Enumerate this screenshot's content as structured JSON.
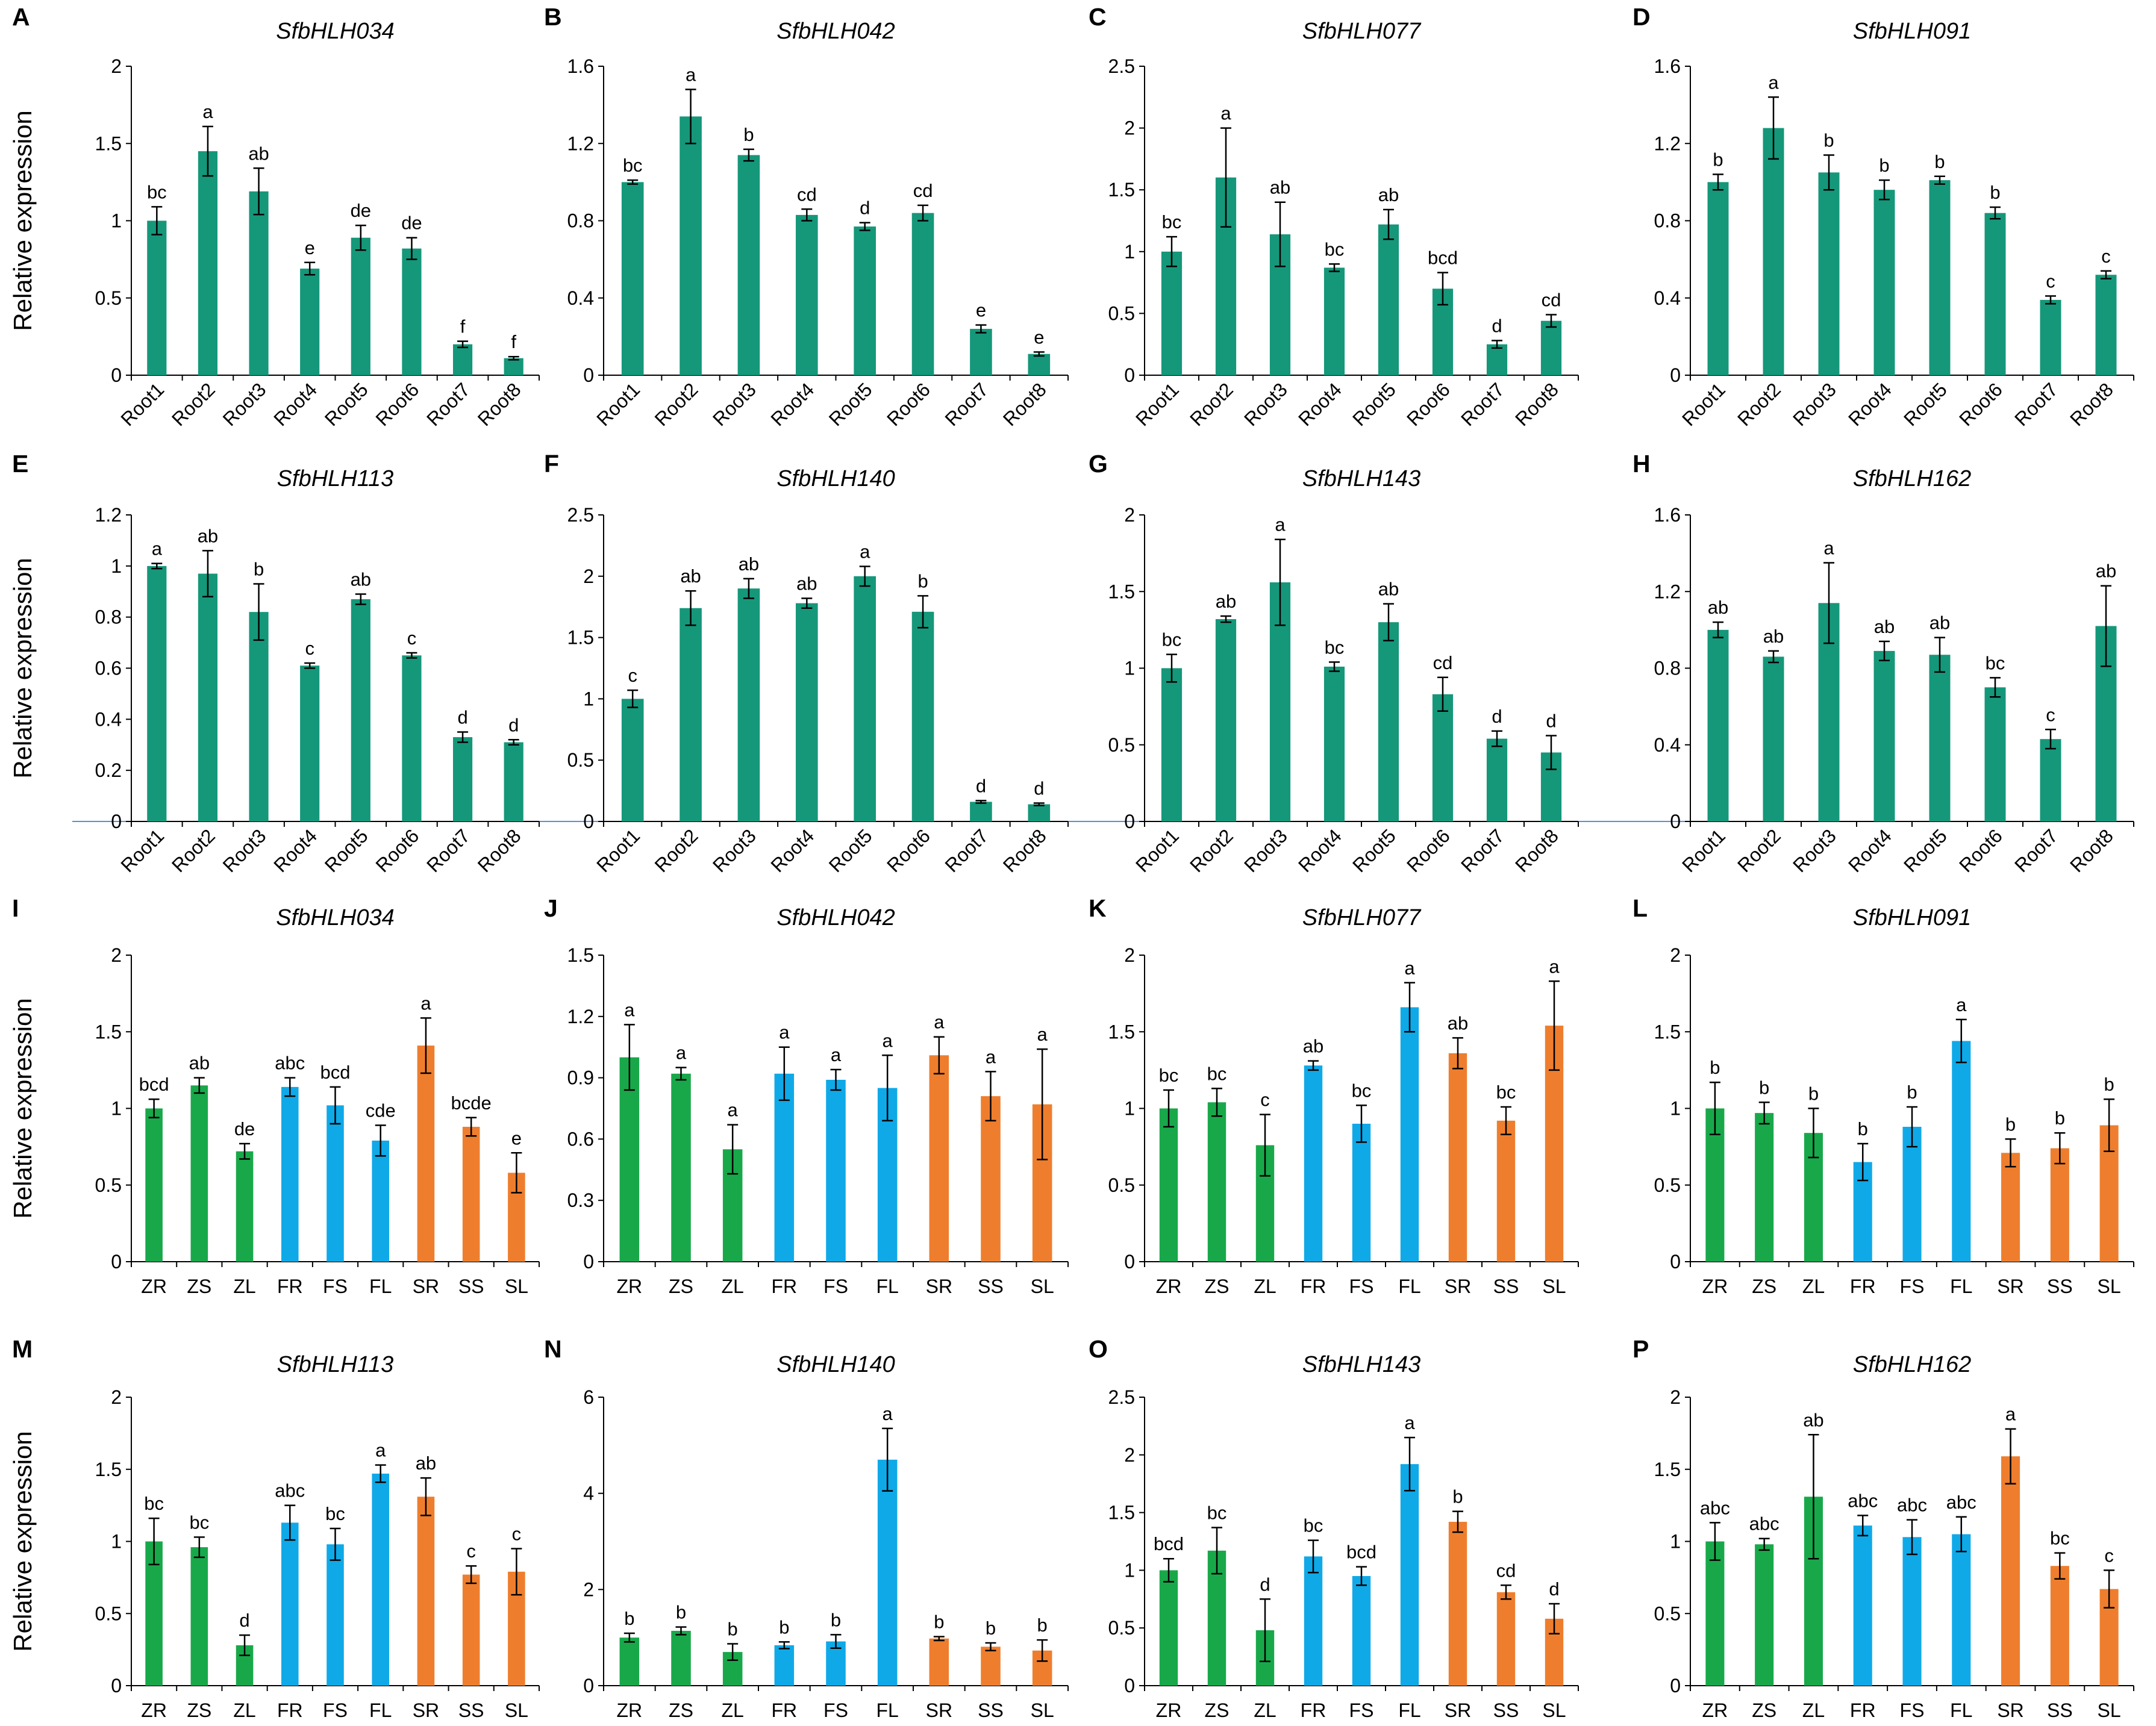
{
  "y_axis_label": "Relative expression",
  "colors": {
    "root": "#15977A",
    "z": "#18A84A",
    "f": "#0FA9E8",
    "s": "#EE7E2E",
    "divider": "#5B8FD6"
  },
  "chart_data": [
    {
      "panel": "A",
      "type": "bar",
      "title": "SfbHLH034",
      "categories": [
        "Root1",
        "Root2",
        "Root3",
        "Root4",
        "Root5",
        "Root6",
        "Root7",
        "Root8"
      ],
      "values": [
        1.0,
        1.45,
        1.19,
        0.69,
        0.89,
        0.82,
        0.2,
        0.11
      ],
      "errors": [
        0.09,
        0.16,
        0.15,
        0.04,
        0.08,
        0.07,
        0.02,
        0.01
      ],
      "letters": [
        "bc",
        "a",
        "ab",
        "e",
        "de",
        "de",
        "f",
        "f"
      ],
      "ylim": [
        0,
        2
      ],
      "ticks": [
        "0",
        "0.5",
        "1",
        "1.5",
        "2"
      ],
      "colors": [
        "root",
        "root",
        "root",
        "root",
        "root",
        "root",
        "root",
        "root"
      ]
    },
    {
      "panel": "B",
      "type": "bar",
      "title": "SfbHLH042",
      "categories": [
        "Root1",
        "Root2",
        "Root3",
        "Root4",
        "Root5",
        "Root6",
        "Root7",
        "Root8"
      ],
      "values": [
        1.0,
        1.34,
        1.14,
        0.83,
        0.77,
        0.84,
        0.24,
        0.11
      ],
      "errors": [
        0.01,
        0.14,
        0.03,
        0.03,
        0.02,
        0.04,
        0.02,
        0.01
      ],
      "letters": [
        "bc",
        "a",
        "b",
        "cd",
        "d",
        "cd",
        "e",
        "e"
      ],
      "ylim": [
        0,
        1.6
      ],
      "ticks": [
        "0",
        "0.4",
        "0.8",
        "1.2",
        "1.6"
      ],
      "colors": [
        "root",
        "root",
        "root",
        "root",
        "root",
        "root",
        "root",
        "root"
      ]
    },
    {
      "panel": "C",
      "type": "bar",
      "title": "SfbHLH077",
      "categories": [
        "Root1",
        "Root2",
        "Root3",
        "Root4",
        "Root5",
        "Root6",
        "Root7",
        "Root8"
      ],
      "values": [
        1.0,
        1.6,
        1.14,
        0.87,
        1.22,
        0.7,
        0.25,
        0.44
      ],
      "errors": [
        0.12,
        0.4,
        0.26,
        0.03,
        0.12,
        0.13,
        0.03,
        0.05
      ],
      "letters": [
        "bc",
        "a",
        "ab",
        "bc",
        "ab",
        "bcd",
        "d",
        "cd"
      ],
      "ylim": [
        0,
        2.5
      ],
      "ticks": [
        "0",
        "0.5",
        "1",
        "1.5",
        "2",
        "2.5"
      ],
      "colors": [
        "root",
        "root",
        "root",
        "root",
        "root",
        "root",
        "root",
        "root"
      ]
    },
    {
      "panel": "D",
      "type": "bar",
      "title": "SfbHLH091",
      "categories": [
        "Root1",
        "Root2",
        "Root3",
        "Root4",
        "Root5",
        "Root6",
        "Root7",
        "Root8"
      ],
      "values": [
        1.0,
        1.28,
        1.05,
        0.96,
        1.01,
        0.84,
        0.39,
        0.52
      ],
      "errors": [
        0.04,
        0.16,
        0.09,
        0.05,
        0.02,
        0.03,
        0.02,
        0.02
      ],
      "letters": [
        "b",
        "a",
        "b",
        "b",
        "b",
        "b",
        "c",
        "c"
      ],
      "ylim": [
        0,
        1.6
      ],
      "ticks": [
        "0",
        "0.4",
        "0.8",
        "1.2",
        "1.6"
      ],
      "colors": [
        "root",
        "root",
        "root",
        "root",
        "root",
        "root",
        "root",
        "root"
      ]
    },
    {
      "panel": "E",
      "type": "bar",
      "title": "SfbHLH113",
      "categories": [
        "Root1",
        "Root2",
        "Root3",
        "Root4",
        "Root5",
        "Root6",
        "Root7",
        "Root8"
      ],
      "values": [
        1.0,
        0.97,
        0.82,
        0.61,
        0.87,
        0.65,
        0.33,
        0.31
      ],
      "errors": [
        0.01,
        0.09,
        0.11,
        0.01,
        0.02,
        0.01,
        0.02,
        0.01
      ],
      "letters": [
        "a",
        "ab",
        "b",
        "c",
        "ab",
        "c",
        "d",
        "d"
      ],
      "ylim": [
        0,
        1.2
      ],
      "ticks": [
        "0",
        "0.2",
        "0.4",
        "0.6",
        "0.8",
        "1",
        "1.2"
      ],
      "colors": [
        "root",
        "root",
        "root",
        "root",
        "root",
        "root",
        "root",
        "root"
      ]
    },
    {
      "panel": "F",
      "type": "bar",
      "title": "SfbHLH140",
      "categories": [
        "Root1",
        "Root2",
        "Root3",
        "Root4",
        "Root5",
        "Root6",
        "Root7",
        "Root8"
      ],
      "values": [
        1.0,
        1.74,
        1.9,
        1.78,
        2.0,
        1.71,
        0.16,
        0.14
      ],
      "errors": [
        0.07,
        0.14,
        0.08,
        0.04,
        0.08,
        0.13,
        0.01,
        0.01
      ],
      "letters": [
        "c",
        "ab",
        "ab",
        "ab",
        "a",
        "b",
        "d",
        "d"
      ],
      "ylim": [
        0,
        2.5
      ],
      "ticks": [
        "0",
        "0.5",
        "1",
        "1.5",
        "2",
        "2.5"
      ],
      "colors": [
        "root",
        "root",
        "root",
        "root",
        "root",
        "root",
        "root",
        "root"
      ]
    },
    {
      "panel": "G",
      "type": "bar",
      "title": "SfbHLH143",
      "categories": [
        "Root1",
        "Root2",
        "Root3",
        "Root4",
        "Root5",
        "Root6",
        "Root7",
        "Root8"
      ],
      "values": [
        1.0,
        1.32,
        1.56,
        1.01,
        1.3,
        0.83,
        0.54,
        0.45
      ],
      "errors": [
        0.09,
        0.02,
        0.28,
        0.03,
        0.12,
        0.11,
        0.05,
        0.11
      ],
      "letters": [
        "bc",
        "ab",
        "a",
        "bc",
        "ab",
        "cd",
        "d",
        "d"
      ],
      "ylim": [
        0,
        2
      ],
      "ticks": [
        "0",
        "0.5",
        "1",
        "1.5",
        "2"
      ],
      "colors": [
        "root",
        "root",
        "root",
        "root",
        "root",
        "root",
        "root",
        "root"
      ]
    },
    {
      "panel": "H",
      "type": "bar",
      "title": "SfbHLH162",
      "categories": [
        "Root1",
        "Root2",
        "Root3",
        "Root4",
        "Root5",
        "Root6",
        "Root7",
        "Root8"
      ],
      "values": [
        1.0,
        0.86,
        1.14,
        0.89,
        0.87,
        0.7,
        0.43,
        1.02
      ],
      "errors": [
        0.04,
        0.03,
        0.21,
        0.05,
        0.09,
        0.05,
        0.05,
        0.21
      ],
      "letters": [
        "ab",
        "ab",
        "a",
        "ab",
        "ab",
        "bc",
        "c",
        "ab"
      ],
      "ylim": [
        0,
        1.6
      ],
      "ticks": [
        "0",
        "0.4",
        "0.8",
        "1.2",
        "1.6"
      ],
      "colors": [
        "root",
        "root",
        "root",
        "root",
        "root",
        "root",
        "root",
        "root"
      ]
    },
    {
      "panel": "I",
      "type": "bar",
      "title": "SfbHLH034",
      "categories": [
        "ZR",
        "ZS",
        "ZL",
        "FR",
        "FS",
        "FL",
        "SR",
        "SS",
        "SL"
      ],
      "values": [
        1.0,
        1.15,
        0.72,
        1.14,
        1.02,
        0.79,
        1.41,
        0.88,
        0.58
      ],
      "errors": [
        0.06,
        0.05,
        0.05,
        0.06,
        0.12,
        0.1,
        0.18,
        0.06,
        0.13
      ],
      "letters": [
        "bcd",
        "ab",
        "de",
        "abc",
        "bcd",
        "cde",
        "a",
        "bcde",
        "e"
      ],
      "ylim": [
        0,
        2
      ],
      "ticks": [
        "0",
        "0.5",
        "1",
        "1.5",
        "2"
      ],
      "colors": [
        "z",
        "z",
        "z",
        "f",
        "f",
        "f",
        "s",
        "s",
        "s"
      ]
    },
    {
      "panel": "J",
      "type": "bar",
      "title": "SfbHLH042",
      "categories": [
        "ZR",
        "ZS",
        "ZL",
        "FR",
        "FS",
        "FL",
        "SR",
        "SS",
        "SL"
      ],
      "values": [
        1.0,
        0.92,
        0.55,
        0.92,
        0.89,
        0.85,
        1.01,
        0.81,
        0.77
      ],
      "errors": [
        0.16,
        0.03,
        0.12,
        0.13,
        0.05,
        0.16,
        0.09,
        0.12,
        0.27
      ],
      "letters": [
        "a",
        "a",
        "a",
        "a",
        "a",
        "a",
        "a",
        "a",
        "a"
      ],
      "ylim": [
        0,
        1.5
      ],
      "ticks": [
        "0",
        "0.3",
        "0.6",
        "0.9",
        "1.2",
        "1.5"
      ],
      "colors": [
        "z",
        "z",
        "z",
        "f",
        "f",
        "f",
        "s",
        "s",
        "s"
      ]
    },
    {
      "panel": "K",
      "type": "bar",
      "title": "SfbHLH077",
      "categories": [
        "ZR",
        "ZS",
        "ZL",
        "FR",
        "FS",
        "FL",
        "SR",
        "SS",
        "SL"
      ],
      "values": [
        1.0,
        1.04,
        0.76,
        1.28,
        0.9,
        1.66,
        1.36,
        0.92,
        1.54
      ],
      "errors": [
        0.12,
        0.09,
        0.2,
        0.03,
        0.12,
        0.16,
        0.1,
        0.09,
        0.29
      ],
      "letters": [
        "bc",
        "bc",
        "c",
        "ab",
        "bc",
        "a",
        "ab",
        "bc",
        "a"
      ],
      "ylim": [
        0,
        2
      ],
      "ticks": [
        "0",
        "0.5",
        "1",
        "1.5",
        "2"
      ],
      "colors": [
        "z",
        "z",
        "z",
        "f",
        "f",
        "f",
        "s",
        "s",
        "s"
      ]
    },
    {
      "panel": "L",
      "type": "bar",
      "title": "SfbHLH091",
      "categories": [
        "ZR",
        "ZS",
        "ZL",
        "FR",
        "FS",
        "FL",
        "SR",
        "SS",
        "SL"
      ],
      "values": [
        1.0,
        0.97,
        0.84,
        0.65,
        0.88,
        1.44,
        0.71,
        0.74,
        0.89
      ],
      "errors": [
        0.17,
        0.07,
        0.16,
        0.12,
        0.13,
        0.14,
        0.09,
        0.1,
        0.17
      ],
      "letters": [
        "b",
        "b",
        "b",
        "b",
        "b",
        "a",
        "b",
        "b",
        "b"
      ],
      "ylim": [
        0,
        2
      ],
      "ticks": [
        "0",
        "0.5",
        "1",
        "1.5",
        "2"
      ],
      "colors": [
        "z",
        "z",
        "z",
        "f",
        "f",
        "f",
        "s",
        "s",
        "s"
      ]
    },
    {
      "panel": "M",
      "type": "bar",
      "title": "SfbHLH113",
      "categories": [
        "ZR",
        "ZS",
        "ZL",
        "FR",
        "FS",
        "FL",
        "SR",
        "SS",
        "SL"
      ],
      "values": [
        1.0,
        0.96,
        0.28,
        1.13,
        0.98,
        1.47,
        1.31,
        0.77,
        0.79
      ],
      "errors": [
        0.16,
        0.07,
        0.07,
        0.12,
        0.11,
        0.06,
        0.13,
        0.06,
        0.16
      ],
      "letters": [
        "bc",
        "bc",
        "d",
        "abc",
        "bc",
        "a",
        "ab",
        "c",
        "c"
      ],
      "ylim": [
        0,
        2
      ],
      "ticks": [
        "0",
        "0.5",
        "1",
        "1.5",
        "2"
      ],
      "colors": [
        "z",
        "z",
        "z",
        "f",
        "f",
        "f",
        "s",
        "s",
        "s"
      ]
    },
    {
      "panel": "N",
      "type": "bar",
      "title": "SfbHLH140",
      "categories": [
        "ZR",
        "ZS",
        "ZL",
        "FR",
        "FS",
        "FL",
        "SR",
        "SS",
        "SL"
      ],
      "values": [
        1.0,
        1.14,
        0.7,
        0.84,
        0.92,
        4.7,
        0.98,
        0.81,
        0.73
      ],
      "errors": [
        0.09,
        0.08,
        0.17,
        0.07,
        0.14,
        0.65,
        0.04,
        0.08,
        0.22
      ],
      "letters": [
        "b",
        "b",
        "b",
        "b",
        "b",
        "a",
        "b",
        "b",
        "b"
      ],
      "ylim": [
        0,
        6
      ],
      "ticks": [
        "0",
        "2",
        "4",
        "6"
      ],
      "colors": [
        "z",
        "z",
        "z",
        "f",
        "f",
        "f",
        "s",
        "s",
        "s"
      ]
    },
    {
      "panel": "O",
      "type": "bar",
      "title": "SfbHLH143",
      "categories": [
        "ZR",
        "ZS",
        "ZL",
        "FR",
        "FS",
        "FL",
        "SR",
        "SS",
        "SL"
      ],
      "values": [
        1.0,
        1.17,
        0.48,
        1.12,
        0.95,
        1.92,
        1.42,
        0.81,
        0.58
      ],
      "errors": [
        0.1,
        0.2,
        0.27,
        0.14,
        0.08,
        0.23,
        0.09,
        0.06,
        0.13
      ],
      "letters": [
        "bcd",
        "bc",
        "d",
        "bc",
        "bcd",
        "a",
        "b",
        "cd",
        "d"
      ],
      "ylim": [
        0,
        2.5
      ],
      "ticks": [
        "0",
        "0.5",
        "1",
        "1.5",
        "2",
        "2.5"
      ],
      "colors": [
        "z",
        "z",
        "z",
        "f",
        "f",
        "f",
        "s",
        "s",
        "s"
      ]
    },
    {
      "panel": "P",
      "type": "bar",
      "title": "SfbHLH162",
      "categories": [
        "ZR",
        "ZS",
        "ZL",
        "FR",
        "FS",
        "FL",
        "SR",
        "SS",
        "SL"
      ],
      "values": [
        1.0,
        0.98,
        1.31,
        1.11,
        1.03,
        1.05,
        1.59,
        0.83,
        0.67
      ],
      "errors": [
        0.13,
        0.04,
        0.43,
        0.07,
        0.12,
        0.12,
        0.19,
        0.09,
        0.13
      ],
      "letters": [
        "abc",
        "abc",
        "ab",
        "abc",
        "abc",
        "abc",
        "a",
        "bc",
        "c"
      ],
      "ylim": [
        0,
        2
      ],
      "ticks": [
        "0",
        "0.5",
        "1",
        "1.5",
        "2"
      ],
      "colors": [
        "z",
        "z",
        "z",
        "f",
        "f",
        "f",
        "s",
        "s",
        "s"
      ]
    }
  ]
}
